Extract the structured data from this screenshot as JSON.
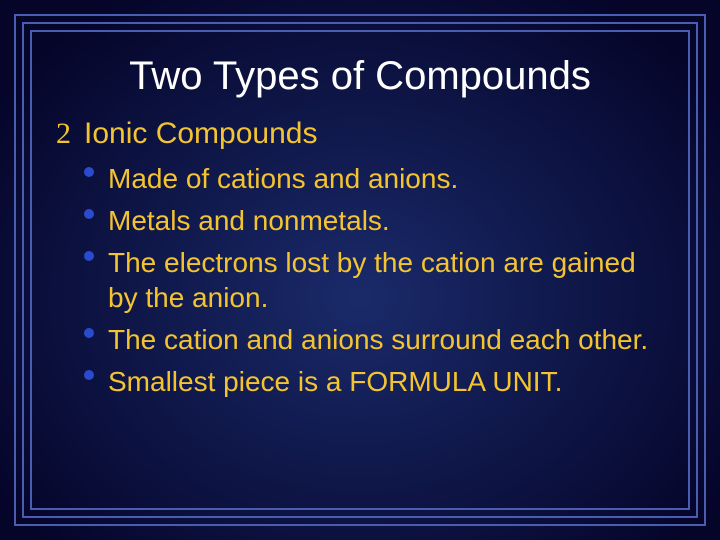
{
  "slide": {
    "background_color": "#0a0a3a",
    "gradient_start": "#05052a",
    "gradient_end": "#1a2a6a",
    "border": {
      "outer_inset": 14,
      "line_color": "#4a5db0",
      "line_widths": [
        2,
        2,
        2
      ],
      "gaps": [
        6,
        6
      ]
    },
    "title": {
      "text": "Two Types of Compounds",
      "color": "#ffffff",
      "fontsize": 40,
      "font_weight": "normal"
    },
    "subtitle": {
      "marker": "2",
      "marker_color": "#f4c430",
      "marker_fontsize": 30,
      "text": "Ionic Compounds",
      "color": "#f4c430",
      "fontsize": 30
    },
    "bullets": {
      "dot_color": "#2a4acf",
      "text_color": "#f4c430",
      "fontsize": 28,
      "line_height": 1.28,
      "items": [
        "Made of cations and anions.",
        "Metals and nonmetals.",
        "The electrons lost by the cation are gained by the anion.",
        "The cation and anions surround each other.",
        "Smallest piece is a FORMULA UNIT."
      ]
    }
  }
}
